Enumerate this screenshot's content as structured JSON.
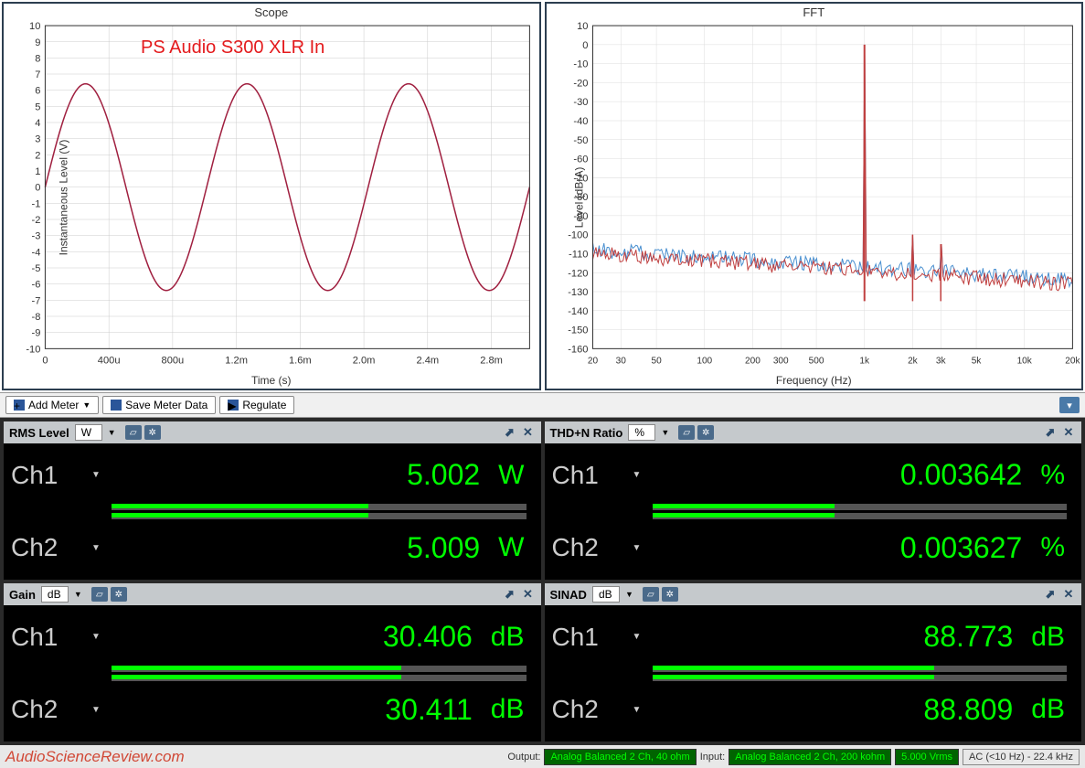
{
  "scope": {
    "title": "Scope",
    "annotation": "PS Audio S300 XLR In",
    "xlabel": "Time (s)",
    "ylabel": "Instantaneous Level (V)",
    "ylim": [
      -10,
      10
    ],
    "ytick_step": 1,
    "xlim": [
      0,
      0.003
    ],
    "xticks": [
      "0",
      "400u",
      "800u",
      "1.2m",
      "1.6m",
      "2.0m",
      "2.4m",
      "2.8m"
    ],
    "signal_color": "#a02040",
    "amplitude": 6.4,
    "frequency": 1000,
    "grid_color": "#cccccc",
    "bg": "#ffffff"
  },
  "fft": {
    "title": "FFT",
    "xlabel": "Frequency (Hz)",
    "ylabel": "Level (dBrA)",
    "ylim": [
      -160,
      10
    ],
    "ytick_step": 10,
    "xlim": [
      20,
      20000
    ],
    "xticks": [
      "20",
      "30",
      "50",
      "100",
      "200",
      "300",
      "500",
      "1k",
      "2k",
      "3k",
      "5k",
      "10k",
      "20k"
    ],
    "ch1_color": "#4a90d0",
    "ch2_color": "#c04040",
    "noise_floor": -130,
    "fundamental_hz": 1000,
    "fundamental_db": 0,
    "harmonics": [
      {
        "hz": 2000,
        "db": -100
      },
      {
        "hz": 3000,
        "db": -105
      }
    ],
    "grid_color": "#dddddd",
    "bg": "#ffffff"
  },
  "toolbar": {
    "add_meter": "Add Meter",
    "save_meter": "Save Meter Data",
    "regulate": "Regulate"
  },
  "meters": {
    "rms": {
      "title": "RMS Level",
      "unit": "W",
      "ch1": {
        "label": "Ch1",
        "value": "5.002",
        "unit": "W",
        "bar": 0.62
      },
      "ch2": {
        "label": "Ch2",
        "value": "5.009",
        "unit": "W",
        "bar": 0.62
      }
    },
    "thdn": {
      "title": "THD+N Ratio",
      "unit": "%",
      "ch1": {
        "label": "Ch1",
        "value": "0.003642",
        "unit": "%",
        "bar": 0.44
      },
      "ch2": {
        "label": "Ch2",
        "value": "0.003627",
        "unit": "%",
        "bar": 0.44
      }
    },
    "gain": {
      "title": "Gain",
      "unit": "dB",
      "ch1": {
        "label": "Ch1",
        "value": "30.406",
        "unit": "dB",
        "bar": 0.7
      },
      "ch2": {
        "label": "Ch2",
        "value": "30.411",
        "unit": "dB",
        "bar": 0.7
      }
    },
    "sinad": {
      "title": "SINAD",
      "unit": "dB",
      "ch1": {
        "label": "Ch1",
        "value": "88.773",
        "unit": "dB",
        "bar": 0.68
      },
      "ch2": {
        "label": "Ch2",
        "value": "88.809",
        "unit": "dB",
        "bar": 0.68
      }
    }
  },
  "status": {
    "watermark": "AudioScienceReview.com",
    "output_label": "Output:",
    "output_val": "Analog Balanced 2 Ch, 40 ohm",
    "input_label": "Input:",
    "input_val": "Analog Balanced 2 Ch, 200 kohm",
    "level": "5.000 Vrms",
    "bw": "AC (<10 Hz) - 22.4 kHz"
  },
  "colors": {
    "panel_bg": "#c5c9cc",
    "black": "#000000",
    "led_green": "#00ff00"
  }
}
